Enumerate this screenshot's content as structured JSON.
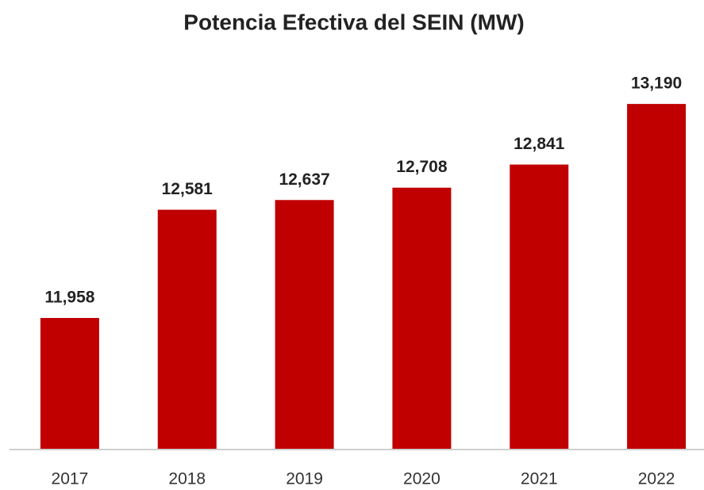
{
  "chart_data": {
    "type": "bar",
    "title": "Potencia Efectiva del SEIN (MW)",
    "categories": [
      "2017",
      "2018",
      "2019",
      "2020",
      "2021",
      "2022"
    ],
    "values": [
      11958,
      12581,
      12637,
      12708,
      12841,
      13190
    ],
    "value_labels": [
      "11,958",
      "12,581",
      "12,637",
      "12,708",
      "12,841",
      "13,190"
    ],
    "color": "#c00000",
    "ylim": [
      11205,
      13300
    ]
  }
}
